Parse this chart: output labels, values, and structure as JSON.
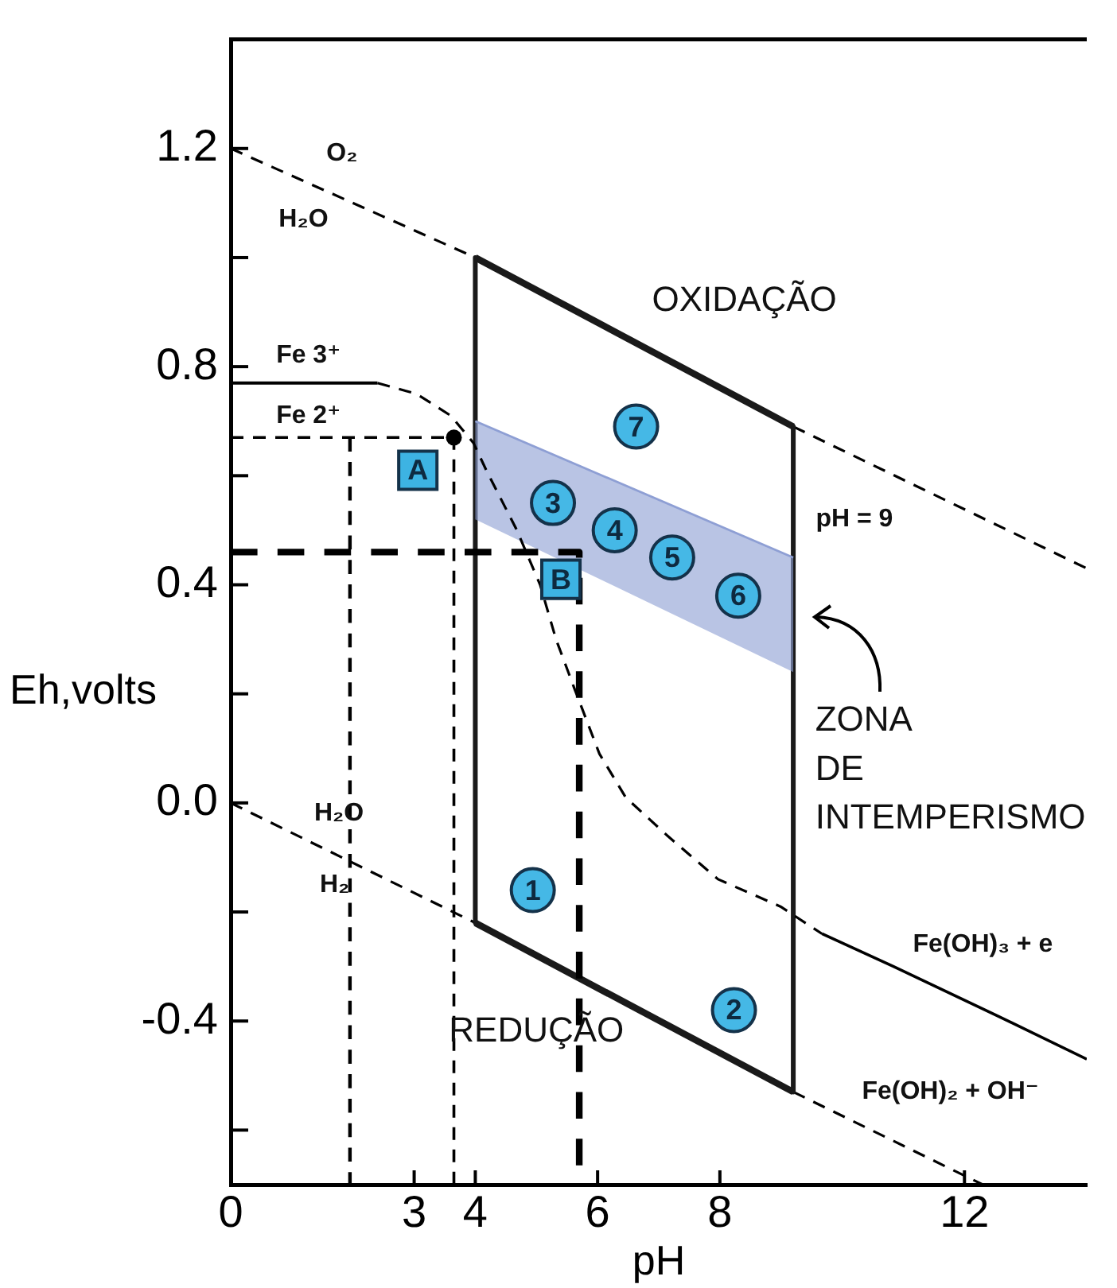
{
  "chart_data": {
    "type": "line",
    "xlabel": "pH",
    "ylabel": "Eh,volts",
    "xlim": [
      0,
      14
    ],
    "ylim": [
      -0.7,
      1.4
    ],
    "xticks": [
      0,
      3,
      4,
      6,
      8,
      12
    ],
    "yticks": [
      {
        "value": -0.6,
        "label": null
      },
      {
        "value": -0.4,
        "label": "-0.4"
      },
      {
        "value": -0.2,
        "label": null
      },
      {
        "value": 0,
        "label": "0.0"
      },
      {
        "value": 0.2,
        "label": null
      },
      {
        "value": 0.4,
        "label": "0.4"
      },
      {
        "value": 0.6,
        "label": null
      },
      {
        "value": 0.8,
        "label": "0.8"
      },
      {
        "value": 1.0,
        "label": null
      },
      {
        "value": 1.2,
        "label": "1.2"
      }
    ],
    "series": [
      {
        "type": "line",
        "color": "#000000",
        "line_style": "dashed",
        "x": [
          0,
          4
        ],
        "values": [
          1.2,
          1.0
        ]
      },
      {
        "type": "line",
        "color": "#000000",
        "line_style": "dashed",
        "x": [
          9.2,
          14
        ],
        "values": [
          0.69,
          0.43
        ]
      },
      {
        "type": "line",
        "color": "#000000",
        "line_style": "dashed",
        "x": [
          0,
          4
        ],
        "values": [
          0,
          -0.22
        ]
      },
      {
        "type": "line",
        "color": "#000000",
        "line_style": "dashed",
        "x": [
          9.2,
          12.3
        ],
        "values": [
          -0.53,
          -0.7
        ]
      },
      {
        "type": "line",
        "color": "#1a1a1a",
        "line_style": "solid",
        "x": [
          4,
          9.2
        ],
        "values": [
          1.0,
          0.69
        ]
      },
      {
        "type": "line",
        "color": "#1a1a1a",
        "line_style": "solid",
        "x": [
          4,
          9.2
        ],
        "values": [
          -0.22,
          -0.53
        ]
      },
      {
        "type": "line",
        "color": "#1a1a1a",
        "line_style": "solid",
        "x": [
          4,
          4
        ],
        "values": [
          1.0,
          -0.22
        ]
      },
      {
        "type": "line",
        "color": "#1a1a1a",
        "line_style": "solid",
        "x": [
          9.2,
          9.2
        ],
        "values": [
          0.69,
          -0.53
        ]
      },
      {
        "type": "line",
        "color": "#8e9fd4",
        "line_style": "solid",
        "x": [
          4,
          9.2
        ],
        "values": [
          0.7,
          0.45
        ],
        "lower": [
          0.52,
          0.24
        ],
        "upper": [
          0.7,
          0.45
        ]
      },
      {
        "type": "line",
        "color": "#000000",
        "line_style": "solid",
        "x": [
          0,
          2.4
        ],
        "values": [
          0.77,
          0.77
        ]
      },
      {
        "type": "line",
        "color": "#000000",
        "line_style": "dashed",
        "x": [
          2.4,
          3.04,
          3.6,
          3.97,
          4.18,
          4.68,
          5.06,
          5.32,
          5.62,
          6.03,
          6.46,
          7.14,
          7.97,
          8.99,
          9.67
        ],
        "values": [
          0.77,
          0.75,
          0.71,
          0.66,
          0.61,
          0.5,
          0.4,
          0.3,
          0.21,
          0.09,
          0.01,
          -0.06,
          -0.14,
          -0.19,
          -0.24
        ]
      },
      {
        "type": "line",
        "color": "#000000",
        "line_style": "solid",
        "x": [
          9.67,
          10.84,
          12.53,
          14
        ],
        "values": [
          -0.24,
          -0.3,
          -0.39,
          -0.47
        ]
      },
      {
        "type": "line",
        "color": "#000000",
        "line_style": "dashed",
        "x": [
          0,
          3.65,
          3.65
        ],
        "values": [
          0.67,
          0.67,
          -0.7
        ]
      },
      {
        "type": "line",
        "color": "#000000",
        "line_style": "dashed",
        "x": [
          1.95,
          1.95
        ],
        "values": [
          0.67,
          -0.7
        ]
      },
      {
        "type": "line",
        "color": "#000000",
        "line_style": "dashed",
        "x": [
          0,
          5.7,
          5.7
        ],
        "values": [
          0.46,
          0.46,
          -0.7
        ]
      },
      {
        "type": "scatter",
        "color": "#000000",
        "marker": "circle",
        "x": [
          3.65
        ],
        "values": [
          0.67
        ]
      },
      {
        "type": "scatter",
        "name": "A",
        "color": "#3db3e3",
        "marker": "square",
        "x": [
          3.06
        ],
        "values": [
          0.61
        ]
      },
      {
        "type": "scatter",
        "name": "B",
        "color": "#3db3e3",
        "marker": "square",
        "x": [
          5.4
        ],
        "values": [
          0.41
        ]
      },
      {
        "type": "scatter",
        "name": "1",
        "color": "#45b8e6",
        "marker": "circle",
        "x": [
          4.94
        ],
        "values": [
          -0.16
        ]
      },
      {
        "type": "scatter",
        "name": "2",
        "color": "#45b8e6",
        "marker": "circle",
        "x": [
          8.23
        ],
        "values": [
          -0.38
        ]
      },
      {
        "type": "scatter",
        "name": "3",
        "color": "#45b8e6",
        "marker": "circle",
        "x": [
          5.27
        ],
        "values": [
          0.55
        ]
      },
      {
        "type": "scatter",
        "name": "4",
        "color": "#45b8e6",
        "marker": "circle",
        "x": [
          6.28
        ],
        "values": [
          0.5
        ]
      },
      {
        "type": "scatter",
        "name": "5",
        "color": "#45b8e6",
        "marker": "circle",
        "x": [
          7.22
        ],
        "values": [
          0.45
        ]
      },
      {
        "type": "scatter",
        "name": "6",
        "color": "#45b8e6",
        "marker": "circle",
        "x": [
          8.3
        ],
        "values": [
          0.38
        ]
      },
      {
        "type": "scatter",
        "name": "7",
        "color": "#45b8e6",
        "marker": "circle",
        "x": [
          6.63
        ],
        "values": [
          0.69
        ]
      }
    ],
    "annotations": [
      "O₂",
      "H₂O",
      "Fe 3⁺",
      "Fe 2⁺",
      "H₂O",
      "H₂",
      "OXIDAÇÃO",
      "pH = 9",
      "ZONA\nDE\nINTEMPERISMO",
      "Fe(OH)₃ + e",
      "Fe(OH)₂ + OH⁻",
      "REDUÇÃO"
    ]
  }
}
